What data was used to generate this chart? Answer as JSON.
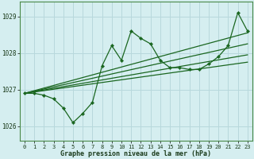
{
  "title": "Graphe pression niveau de la mer (hPa)",
  "bg_color": "#d5eef0",
  "grid_color": "#b8d8dc",
  "line_color": "#1a6620",
  "x_labels": [
    "0",
    "1",
    "2",
    "3",
    "4",
    "5",
    "6",
    "7",
    "8",
    "9",
    "10",
    "11",
    "12",
    "13",
    "14",
    "15",
    "16",
    "17",
    "18",
    "19",
    "20",
    "21",
    "22",
    "23"
  ],
  "y_ticks": [
    1026,
    1027,
    1028,
    1029
  ],
  "ylim": [
    1025.6,
    1029.4
  ],
  "xlim": [
    -0.5,
    23.5
  ],
  "peak_data": [
    1026.9,
    1026.9,
    1026.85,
    1026.75,
    1026.5,
    1026.1,
    1026.35,
    1026.65,
    1027.65,
    1028.2,
    1027.8,
    1028.6,
    1028.4,
    1028.25,
    1027.8,
    1027.6,
    1027.6,
    1027.55,
    1027.55,
    1027.7,
    1027.9,
    1028.2,
    1029.1,
    1028.6
  ],
  "trend1_x": [
    0,
    23
  ],
  "trend1_y": [
    1026.9,
    1028.55
  ],
  "trend2_x": [
    0,
    23
  ],
  "trend2_y": [
    1026.9,
    1028.25
  ],
  "trend3_x": [
    0,
    23
  ],
  "trend3_y": [
    1026.9,
    1027.95
  ],
  "trend4_x": [
    0,
    23
  ],
  "trend4_y": [
    1026.9,
    1027.75
  ]
}
